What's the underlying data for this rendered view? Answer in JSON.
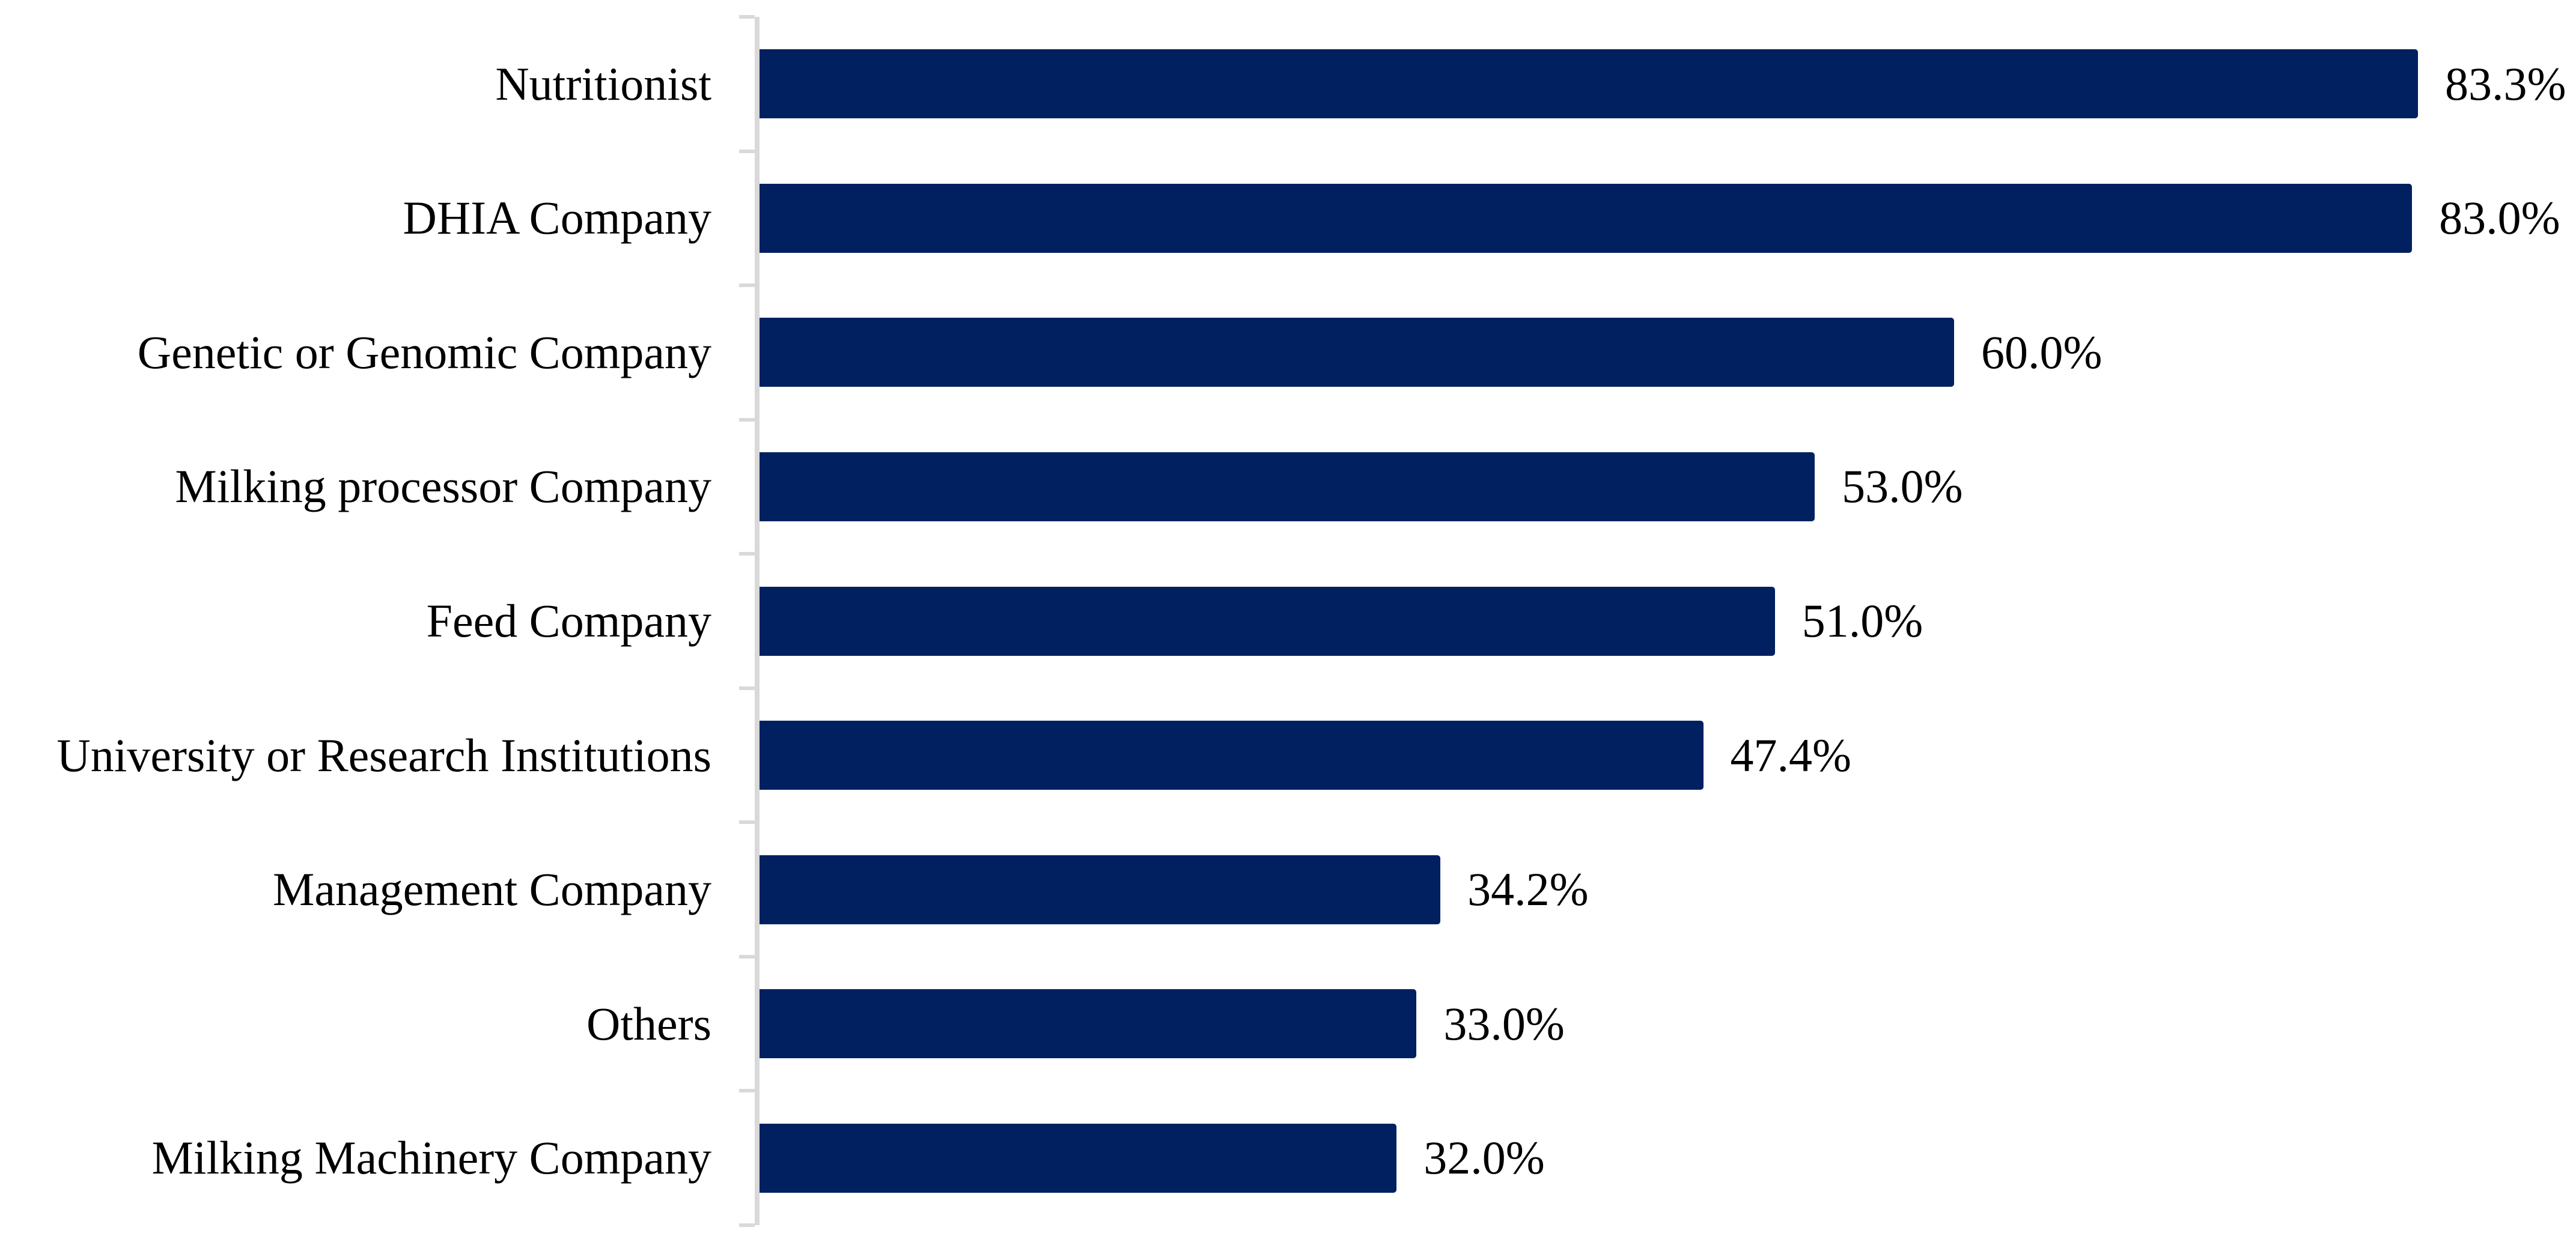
{
  "chart_data": {
    "type": "bar",
    "orientation": "horizontal",
    "title": "",
    "xlabel": "",
    "ylabel": "",
    "categories": [
      "Nutritionist",
      "DHIA Company",
      "Genetic or Genomic Company",
      "Milking processor Company",
      "Feed Company",
      "University or Research Institutions",
      "Management Company",
      "Others",
      "Milking Machinery Company"
    ],
    "values": [
      83.3,
      83.0,
      60.0,
      53.0,
      51.0,
      47.4,
      34.2,
      33.0,
      32.0
    ],
    "value_labels": [
      "83.3%",
      "83.0%",
      "60.0%",
      "53.0%",
      "51.0%",
      "47.4%",
      "34.2%",
      "33.0%",
      "32.0%"
    ],
    "xlim": [
      0,
      90
    ],
    "grid": false,
    "legend": "none",
    "data_labels": "outside-end",
    "colors": {
      "bar": "#002060",
      "axis": "#D9D9D9",
      "text": "#000000",
      "background": "#FFFFFF"
    }
  }
}
